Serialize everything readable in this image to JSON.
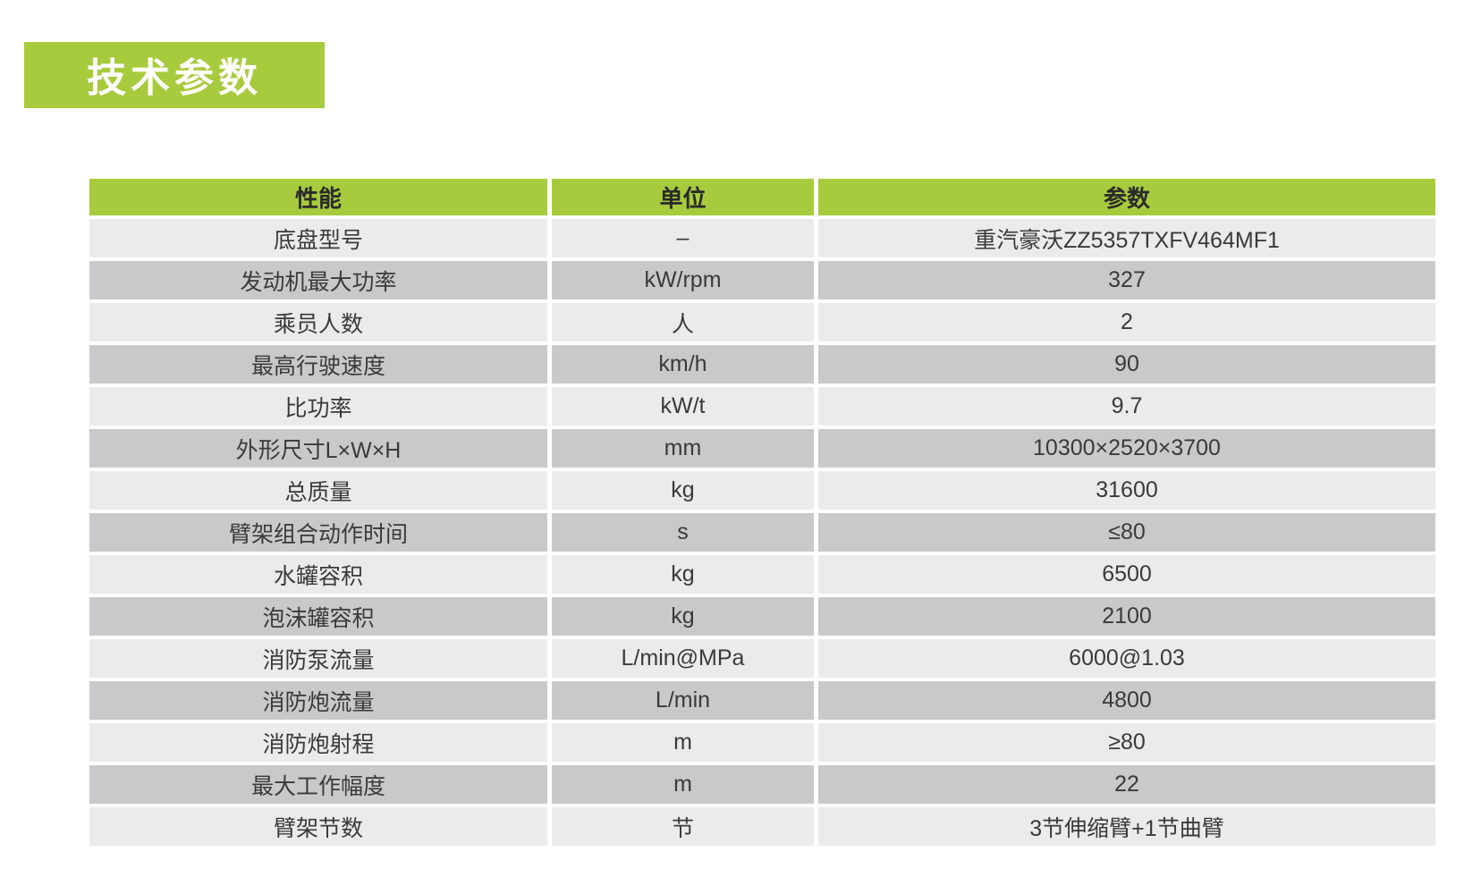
{
  "page": {
    "title_banner": "技术参数"
  },
  "table": {
    "headers": [
      "性能",
      "单位",
      "参数"
    ],
    "rows": [
      {
        "name": "底盘型号",
        "unit": "–",
        "value": "重汽豪沃ZZ5357TXFV464MF1"
      },
      {
        "name": "发动机最大功率",
        "unit": "kW/rpm",
        "value": "327"
      },
      {
        "name": "乘员人数",
        "unit": "人",
        "value": "2"
      },
      {
        "name": "最高行驶速度",
        "unit": "km/h",
        "value": "90"
      },
      {
        "name": "比功率",
        "unit": "kW/t",
        "value": "9.7"
      },
      {
        "name": "外形尺寸L×W×H",
        "unit": "mm",
        "value": "10300×2520×3700"
      },
      {
        "name": "总质量",
        "unit": "kg",
        "value": "31600"
      },
      {
        "name": "臂架组合动作时间",
        "unit": "s",
        "value": "≤80"
      },
      {
        "name": "水罐容积",
        "unit": "kg",
        "value": "6500"
      },
      {
        "name": "泡沫罐容积",
        "unit": "kg",
        "value": "2100"
      },
      {
        "name": "消防泵流量",
        "unit": "L/min@MPa",
        "value": "6000@1.03"
      },
      {
        "name": "消防炮流量",
        "unit": "L/min",
        "value": "4800"
      },
      {
        "name": "消防炮射程",
        "unit": "m",
        "value": "≥80"
      },
      {
        "name": "最大工作幅度",
        "unit": "m",
        "value": "22"
      },
      {
        "name": "臂架节数",
        "unit": "节",
        "value": "3节伸缩臂+1节曲臂"
      }
    ]
  },
  "colors": {
    "accent_green": "#a7cb3d",
    "row_light": "#ebebec",
    "row_dark": "#c9c9cb",
    "text_dark": "#3a3a3a"
  }
}
